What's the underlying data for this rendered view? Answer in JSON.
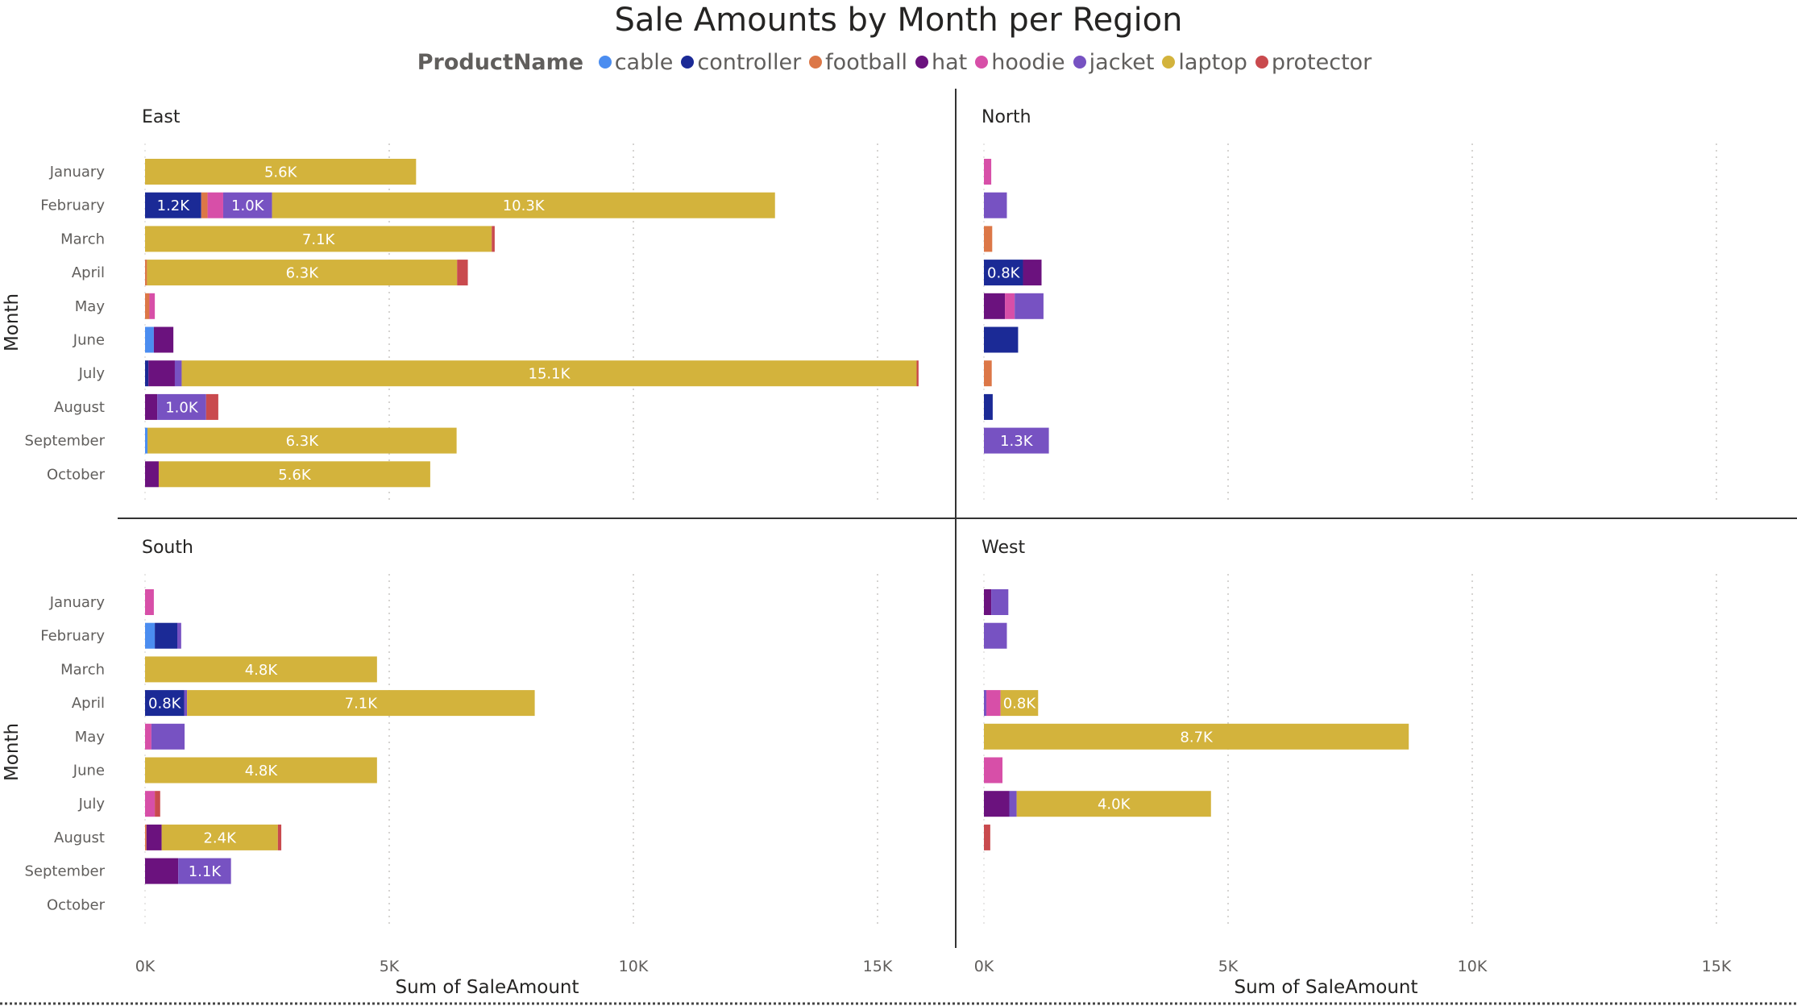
{
  "chart_data": {
    "type": "bar",
    "orientation": "horizontal",
    "stacked": true,
    "title": "Sale Amounts by Month per Region",
    "legend_title": "ProductName",
    "legend_placement": "top",
    "products": [
      "cable",
      "controller",
      "football",
      "hat",
      "hoodie",
      "jacket",
      "laptop",
      "protector"
    ],
    "colors": {
      "cable": "#4b8df0",
      "controller": "#1b2a96",
      "football": "#dc7747",
      "hat": "#6b127e",
      "hoodie": "#d74fa8",
      "jacket": "#7752c2",
      "laptop": "#d3b33c",
      "protector": "#c94a4e"
    },
    "categories": [
      "January",
      "February",
      "March",
      "April",
      "May",
      "June",
      "July",
      "August",
      "September",
      "October"
    ],
    "xlabel": "Sum of SaleAmount",
    "ylabel": "Month",
    "xlim": [
      0,
      16500
    ],
    "xticks": [
      0,
      5000,
      10000,
      15000
    ],
    "xtick_labels": [
      "0K",
      "5K",
      "10K",
      "15K"
    ],
    "grid": true,
    "panels": [
      {
        "region": "East",
        "rows": [
          {
            "month": "January",
            "segments": [
              {
                "product": "laptop",
                "value": 5550,
                "label": "5.6K"
              }
            ]
          },
          {
            "month": "February",
            "segments": [
              {
                "product": "controller",
                "value": 1150,
                "label": "1.2K"
              },
              {
                "product": "football",
                "value": 130
              },
              {
                "product": "hoodie",
                "value": 320
              },
              {
                "product": "jacket",
                "value": 1000,
                "label": "1.0K"
              },
              {
                "product": "laptop",
                "value": 10300,
                "label": "10.3K"
              }
            ]
          },
          {
            "month": "March",
            "segments": [
              {
                "product": "laptop",
                "value": 7100,
                "label": "7.1K"
              },
              {
                "product": "protector",
                "value": 60
              }
            ]
          },
          {
            "month": "April",
            "segments": [
              {
                "product": "football",
                "value": 40
              },
              {
                "product": "laptop",
                "value": 6350,
                "label": "6.3K"
              },
              {
                "product": "protector",
                "value": 220
              }
            ]
          },
          {
            "month": "May",
            "segments": [
              {
                "product": "football",
                "value": 90
              },
              {
                "product": "hoodie",
                "value": 110
              }
            ]
          },
          {
            "month": "June",
            "segments": [
              {
                "product": "cable",
                "value": 180
              },
              {
                "product": "hat",
                "value": 400
              }
            ]
          },
          {
            "month": "July",
            "segments": [
              {
                "product": "controller",
                "value": 70
              },
              {
                "product": "hat",
                "value": 540
              },
              {
                "product": "jacket",
                "value": 140
              },
              {
                "product": "laptop",
                "value": 15050,
                "label": "15.1K"
              },
              {
                "product": "protector",
                "value": 40
              }
            ]
          },
          {
            "month": "August",
            "segments": [
              {
                "product": "hat",
                "value": 250
              },
              {
                "product": "jacket",
                "value": 1000,
                "label": "1.0K"
              },
              {
                "product": "protector",
                "value": 250
              }
            ]
          },
          {
            "month": "September",
            "segments": [
              {
                "product": "cable",
                "value": 50
              },
              {
                "product": "laptop",
                "value": 6330,
                "label": "6.3K"
              }
            ]
          },
          {
            "month": "October",
            "segments": [
              {
                "product": "hat",
                "value": 280
              },
              {
                "product": "laptop",
                "value": 5560,
                "label": "5.6K"
              }
            ]
          }
        ]
      },
      {
        "region": "North",
        "rows": [
          {
            "month": "January",
            "segments": [
              {
                "product": "hoodie",
                "value": 150
              }
            ]
          },
          {
            "month": "February",
            "segments": [
              {
                "product": "jacket",
                "value": 470
              }
            ]
          },
          {
            "month": "March",
            "segments": [
              {
                "product": "football",
                "value": 170
              }
            ]
          },
          {
            "month": "April",
            "segments": [
              {
                "product": "controller",
                "value": 800,
                "label": "0.8K"
              },
              {
                "product": "hat",
                "value": 380
              }
            ]
          },
          {
            "month": "May",
            "segments": [
              {
                "product": "hat",
                "value": 430
              },
              {
                "product": "hoodie",
                "value": 200
              },
              {
                "product": "jacket",
                "value": 590
              }
            ]
          },
          {
            "month": "June",
            "segments": [
              {
                "product": "controller",
                "value": 700
              }
            ]
          },
          {
            "month": "July",
            "segments": [
              {
                "product": "football",
                "value": 160
              }
            ]
          },
          {
            "month": "August",
            "segments": [
              {
                "product": "controller",
                "value": 180
              }
            ]
          },
          {
            "month": "September",
            "segments": [
              {
                "product": "jacket",
                "value": 1330,
                "label": "1.3K"
              }
            ]
          },
          {
            "month": "October",
            "segments": []
          }
        ]
      },
      {
        "region": "South",
        "rows": [
          {
            "month": "January",
            "segments": [
              {
                "product": "hoodie",
                "value": 180
              }
            ]
          },
          {
            "month": "February",
            "segments": [
              {
                "product": "cable",
                "value": 200
              },
              {
                "product": "controller",
                "value": 460
              },
              {
                "product": "jacket",
                "value": 80
              }
            ]
          },
          {
            "month": "March",
            "segments": [
              {
                "product": "laptop",
                "value": 4750,
                "label": "4.8K"
              }
            ]
          },
          {
            "month": "April",
            "segments": [
              {
                "product": "controller",
                "value": 800,
                "label": "0.8K"
              },
              {
                "product": "jacket",
                "value": 60
              },
              {
                "product": "laptop",
                "value": 7120,
                "label": "7.1K"
              }
            ]
          },
          {
            "month": "May",
            "segments": [
              {
                "product": "hoodie",
                "value": 130
              },
              {
                "product": "jacket",
                "value": 680
              }
            ]
          },
          {
            "month": "June",
            "segments": [
              {
                "product": "laptop",
                "value": 4750,
                "label": "4.8K"
              }
            ]
          },
          {
            "month": "July",
            "segments": [
              {
                "product": "hoodie",
                "value": 200
              },
              {
                "product": "protector",
                "value": 110
              }
            ]
          },
          {
            "month": "August",
            "segments": [
              {
                "product": "football",
                "value": 30
              },
              {
                "product": "hat",
                "value": 310
              },
              {
                "product": "laptop",
                "value": 2380,
                "label": "2.4K"
              },
              {
                "product": "protector",
                "value": 70
              }
            ]
          },
          {
            "month": "September",
            "segments": [
              {
                "product": "hat",
                "value": 680
              },
              {
                "product": "jacket",
                "value": 1080,
                "label": "1.1K"
              }
            ]
          },
          {
            "month": "October",
            "segments": []
          }
        ]
      },
      {
        "region": "West",
        "rows": [
          {
            "month": "January",
            "segments": [
              {
                "product": "hat",
                "value": 150
              },
              {
                "product": "jacket",
                "value": 350
              }
            ]
          },
          {
            "month": "February",
            "segments": [
              {
                "product": "jacket",
                "value": 470
              }
            ]
          },
          {
            "month": "March",
            "segments": []
          },
          {
            "month": "April",
            "segments": [
              {
                "product": "jacket",
                "value": 50
              },
              {
                "product": "hoodie",
                "value": 290
              },
              {
                "product": "laptop",
                "value": 770,
                "label": "0.8K"
              }
            ]
          },
          {
            "month": "May",
            "segments": [
              {
                "product": "laptop",
                "value": 8700,
                "label": "8.7K"
              }
            ]
          },
          {
            "month": "June",
            "segments": [
              {
                "product": "hoodie",
                "value": 380
              }
            ]
          },
          {
            "month": "July",
            "segments": [
              {
                "product": "hat",
                "value": 520
              },
              {
                "product": "jacket",
                "value": 150
              },
              {
                "product": "laptop",
                "value": 3980,
                "label": "4.0K"
              }
            ]
          },
          {
            "month": "August",
            "segments": [
              {
                "product": "protector",
                "value": 130
              }
            ]
          },
          {
            "month": "September",
            "segments": []
          },
          {
            "month": "October",
            "segments": []
          }
        ]
      }
    ]
  }
}
